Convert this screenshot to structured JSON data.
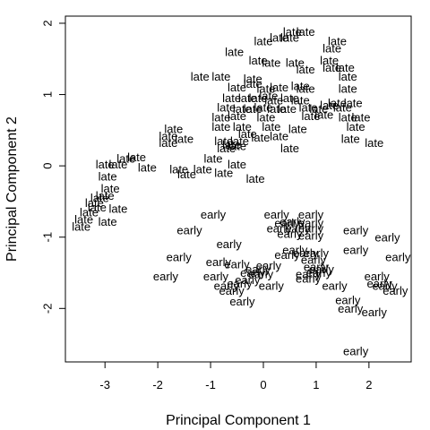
{
  "chart_data": {
    "type": "scatter",
    "title": "",
    "xlabel": "Principal Component 1",
    "ylabel": "Principal Component 2",
    "xlim": [
      -3.75,
      2.8
    ],
    "ylim": [
      -2.75,
      2.1
    ],
    "xticks": [
      -3,
      -2,
      -1,
      0,
      1,
      2
    ],
    "yticks": [
      -2,
      -1,
      0,
      1,
      2
    ],
    "grid": false,
    "legend": "none",
    "point_text": "late/early labels",
    "points": [
      {
        "x": 0.55,
        "y": 1.88,
        "label": "late"
      },
      {
        "x": 0.8,
        "y": 1.88,
        "label": "late"
      },
      {
        "x": 0.5,
        "y": 1.8,
        "label": "late"
      },
      {
        "x": 0.3,
        "y": 1.8,
        "label": "late"
      },
      {
        "x": 0.0,
        "y": 1.75,
        "label": "late"
      },
      {
        "x": 1.4,
        "y": 1.75,
        "label": "late"
      },
      {
        "x": 1.3,
        "y": 1.65,
        "label": "late"
      },
      {
        "x": -0.55,
        "y": 1.6,
        "label": "late"
      },
      {
        "x": -0.1,
        "y": 1.48,
        "label": "late"
      },
      {
        "x": 0.15,
        "y": 1.45,
        "label": "late"
      },
      {
        "x": 0.6,
        "y": 1.45,
        "label": "late"
      },
      {
        "x": 1.25,
        "y": 1.48,
        "label": "late"
      },
      {
        "x": 1.55,
        "y": 1.38,
        "label": "late"
      },
      {
        "x": 0.8,
        "y": 1.35,
        "label": "late"
      },
      {
        "x": 1.3,
        "y": 1.38,
        "label": "late"
      },
      {
        "x": -1.2,
        "y": 1.25,
        "label": "late"
      },
      {
        "x": -0.8,
        "y": 1.25,
        "label": "late"
      },
      {
        "x": -0.2,
        "y": 1.22,
        "label": "late"
      },
      {
        "x": -0.2,
        "y": 1.15,
        "label": "late"
      },
      {
        "x": 1.6,
        "y": 1.25,
        "label": "late"
      },
      {
        "x": -0.5,
        "y": 1.1,
        "label": "late"
      },
      {
        "x": 0.05,
        "y": 1.08,
        "label": "late"
      },
      {
        "x": 0.3,
        "y": 1.1,
        "label": "late"
      },
      {
        "x": 0.7,
        "y": 1.12,
        "label": "late"
      },
      {
        "x": 0.8,
        "y": 1.08,
        "label": "late"
      },
      {
        "x": 1.6,
        "y": 1.08,
        "label": "late"
      },
      {
        "x": -0.6,
        "y": 0.95,
        "label": "late"
      },
      {
        "x": -0.3,
        "y": 0.95,
        "label": "late"
      },
      {
        "x": -0.1,
        "y": 0.95,
        "label": "late"
      },
      {
        "x": 0.1,
        "y": 0.98,
        "label": "late"
      },
      {
        "x": 0.2,
        "y": 0.92,
        "label": "late"
      },
      {
        "x": 0.5,
        "y": 0.95,
        "label": "late"
      },
      {
        "x": 0.7,
        "y": 0.92,
        "label": "late"
      },
      {
        "x": 1.4,
        "y": 0.88,
        "label": "late"
      },
      {
        "x": 1.7,
        "y": 0.88,
        "label": "late"
      },
      {
        "x": -0.7,
        "y": 0.82,
        "label": "late"
      },
      {
        "x": -0.4,
        "y": 0.8,
        "label": "late"
      },
      {
        "x": -0.2,
        "y": 0.8,
        "label": "late"
      },
      {
        "x": 0.0,
        "y": 0.82,
        "label": "late"
      },
      {
        "x": 0.25,
        "y": 0.8,
        "label": "late"
      },
      {
        "x": 0.45,
        "y": 0.8,
        "label": "late"
      },
      {
        "x": 0.85,
        "y": 0.82,
        "label": "late"
      },
      {
        "x": 1.05,
        "y": 0.8,
        "label": "late"
      },
      {
        "x": 1.25,
        "y": 0.85,
        "label": "late"
      },
      {
        "x": 1.5,
        "y": 0.82,
        "label": "late"
      },
      {
        "x": -0.8,
        "y": 0.68,
        "label": "late"
      },
      {
        "x": -0.5,
        "y": 0.7,
        "label": "late"
      },
      {
        "x": 0.05,
        "y": 0.68,
        "label": "late"
      },
      {
        "x": 0.9,
        "y": 0.7,
        "label": "late"
      },
      {
        "x": 1.15,
        "y": 0.72,
        "label": "late"
      },
      {
        "x": 1.85,
        "y": 0.68,
        "label": "late"
      },
      {
        "x": 1.6,
        "y": 0.68,
        "label": "late"
      },
      {
        "x": -0.8,
        "y": 0.55,
        "label": "late"
      },
      {
        "x": -0.4,
        "y": 0.55,
        "label": "late"
      },
      {
        "x": 0.15,
        "y": 0.55,
        "label": "late"
      },
      {
        "x": 0.65,
        "y": 0.52,
        "label": "late"
      },
      {
        "x": 1.75,
        "y": 0.55,
        "label": "late"
      },
      {
        "x": -1.7,
        "y": 0.52,
        "label": "late"
      },
      {
        "x": -0.3,
        "y": 0.45,
        "label": "late"
      },
      {
        "x": -0.05,
        "y": 0.4,
        "label": "late"
      },
      {
        "x": 0.3,
        "y": 0.42,
        "label": "late"
      },
      {
        "x": -1.8,
        "y": 0.42,
        "label": "late"
      },
      {
        "x": -1.5,
        "y": 0.38,
        "label": "late"
      },
      {
        "x": -0.75,
        "y": 0.35,
        "label": "late"
      },
      {
        "x": -0.45,
        "y": 0.35,
        "label": "late"
      },
      {
        "x": 1.65,
        "y": 0.38,
        "label": "late"
      },
      {
        "x": -1.8,
        "y": 0.32,
        "label": "late"
      },
      {
        "x": -0.7,
        "y": 0.25,
        "label": "late"
      },
      {
        "x": -0.5,
        "y": 0.28,
        "label": "late"
      },
      {
        "x": -0.6,
        "y": 0.3,
        "label": "late"
      },
      {
        "x": 2.1,
        "y": 0.32,
        "label": "late"
      },
      {
        "x": 0.5,
        "y": 0.25,
        "label": "late"
      },
      {
        "x": -2.4,
        "y": 0.12,
        "label": "late"
      },
      {
        "x": -2.6,
        "y": 0.1,
        "label": "late"
      },
      {
        "x": -0.95,
        "y": 0.1,
        "label": "late"
      },
      {
        "x": -3.0,
        "y": 0.02,
        "label": "late"
      },
      {
        "x": -2.75,
        "y": 0.02,
        "label": "late"
      },
      {
        "x": -0.5,
        "y": 0.02,
        "label": "late"
      },
      {
        "x": -2.2,
        "y": -0.02,
        "label": "late"
      },
      {
        "x": -1.6,
        "y": -0.05,
        "label": "late"
      },
      {
        "x": -1.15,
        "y": -0.05,
        "label": "late"
      },
      {
        "x": -1.45,
        "y": -0.12,
        "label": "late"
      },
      {
        "x": -0.75,
        "y": -0.1,
        "label": "late"
      },
      {
        "x": -0.15,
        "y": -0.18,
        "label": "late"
      },
      {
        "x": -2.95,
        "y": -0.15,
        "label": "late"
      },
      {
        "x": -2.9,
        "y": -0.32,
        "label": "late"
      },
      {
        "x": -3.0,
        "y": -0.42,
        "label": "late"
      },
      {
        "x": -3.1,
        "y": -0.45,
        "label": "late"
      },
      {
        "x": -3.2,
        "y": -0.52,
        "label": "late"
      },
      {
        "x": -3.15,
        "y": -0.58,
        "label": "late"
      },
      {
        "x": -2.75,
        "y": -0.6,
        "label": "late"
      },
      {
        "x": -3.3,
        "y": -0.65,
        "label": "late"
      },
      {
        "x": -3.4,
        "y": -0.75,
        "label": "late"
      },
      {
        "x": -2.95,
        "y": -0.78,
        "label": "late"
      },
      {
        "x": -3.45,
        "y": -0.85,
        "label": "late"
      },
      {
        "x": -0.95,
        "y": -0.68,
        "label": "early"
      },
      {
        "x": 0.25,
        "y": -0.68,
        "label": "early"
      },
      {
        "x": 0.9,
        "y": -0.68,
        "label": "early"
      },
      {
        "x": 0.45,
        "y": -0.8,
        "label": "early"
      },
      {
        "x": 0.55,
        "y": -0.78,
        "label": "early"
      },
      {
        "x": 0.9,
        "y": -0.8,
        "label": "early"
      },
      {
        "x": 0.3,
        "y": -0.88,
        "label": "early"
      },
      {
        "x": 0.65,
        "y": -0.88,
        "label": "early"
      },
      {
        "x": 0.9,
        "y": -0.88,
        "label": "early"
      },
      {
        "x": -1.4,
        "y": -0.9,
        "label": "early"
      },
      {
        "x": 1.75,
        "y": -0.9,
        "label": "early"
      },
      {
        "x": 0.5,
        "y": -0.95,
        "label": "early"
      },
      {
        "x": 0.9,
        "y": -0.98,
        "label": "early"
      },
      {
        "x": 2.35,
        "y": -1.0,
        "label": "early"
      },
      {
        "x": -0.65,
        "y": -1.1,
        "label": "early"
      },
      {
        "x": 1.75,
        "y": -1.18,
        "label": "early"
      },
      {
        "x": 0.6,
        "y": -1.18,
        "label": "early"
      },
      {
        "x": 0.8,
        "y": -1.22,
        "label": "early"
      },
      {
        "x": 1.0,
        "y": -1.22,
        "label": "early"
      },
      {
        "x": 0.45,
        "y": -1.25,
        "label": "early"
      },
      {
        "x": -1.6,
        "y": -1.28,
        "label": "early"
      },
      {
        "x": 2.55,
        "y": -1.28,
        "label": "early"
      },
      {
        "x": 0.95,
        "y": -1.32,
        "label": "early"
      },
      {
        "x": -0.85,
        "y": -1.35,
        "label": "early"
      },
      {
        "x": -0.5,
        "y": -1.38,
        "label": "early"
      },
      {
        "x": 0.1,
        "y": -1.4,
        "label": "early"
      },
      {
        "x": -0.1,
        "y": -1.45,
        "label": "early"
      },
      {
        "x": 1.0,
        "y": -1.42,
        "label": "early"
      },
      {
        "x": 1.1,
        "y": -1.45,
        "label": "early"
      },
      {
        "x": -0.2,
        "y": -1.5,
        "label": "early"
      },
      {
        "x": -0.05,
        "y": -1.52,
        "label": "early"
      },
      {
        "x": 0.85,
        "y": -1.52,
        "label": "early"
      },
      {
        "x": 1.05,
        "y": -1.5,
        "label": "early"
      },
      {
        "x": -1.85,
        "y": -1.55,
        "label": "early"
      },
      {
        "x": -0.9,
        "y": -1.55,
        "label": "early"
      },
      {
        "x": -0.3,
        "y": -1.6,
        "label": "early"
      },
      {
        "x": 0.85,
        "y": -1.58,
        "label": "early"
      },
      {
        "x": 2.15,
        "y": -1.55,
        "label": "early"
      },
      {
        "x": -0.45,
        "y": -1.65,
        "label": "early"
      },
      {
        "x": -0.7,
        "y": -1.68,
        "label": "early"
      },
      {
        "x": 0.15,
        "y": -1.68,
        "label": "early"
      },
      {
        "x": 1.35,
        "y": -1.68,
        "label": "early"
      },
      {
        "x": 2.2,
        "y": -1.65,
        "label": "early"
      },
      {
        "x": 2.3,
        "y": -1.68,
        "label": "early"
      },
      {
        "x": 2.5,
        "y": -1.75,
        "label": "early"
      },
      {
        "x": -0.6,
        "y": -1.75,
        "label": "early"
      },
      {
        "x": -0.4,
        "y": -1.9,
        "label": "early"
      },
      {
        "x": 1.6,
        "y": -1.88,
        "label": "early"
      },
      {
        "x": 1.65,
        "y": -2.0,
        "label": "early"
      },
      {
        "x": 2.1,
        "y": -2.05,
        "label": "early"
      },
      {
        "x": 1.75,
        "y": -2.6,
        "label": "early"
      }
    ]
  }
}
